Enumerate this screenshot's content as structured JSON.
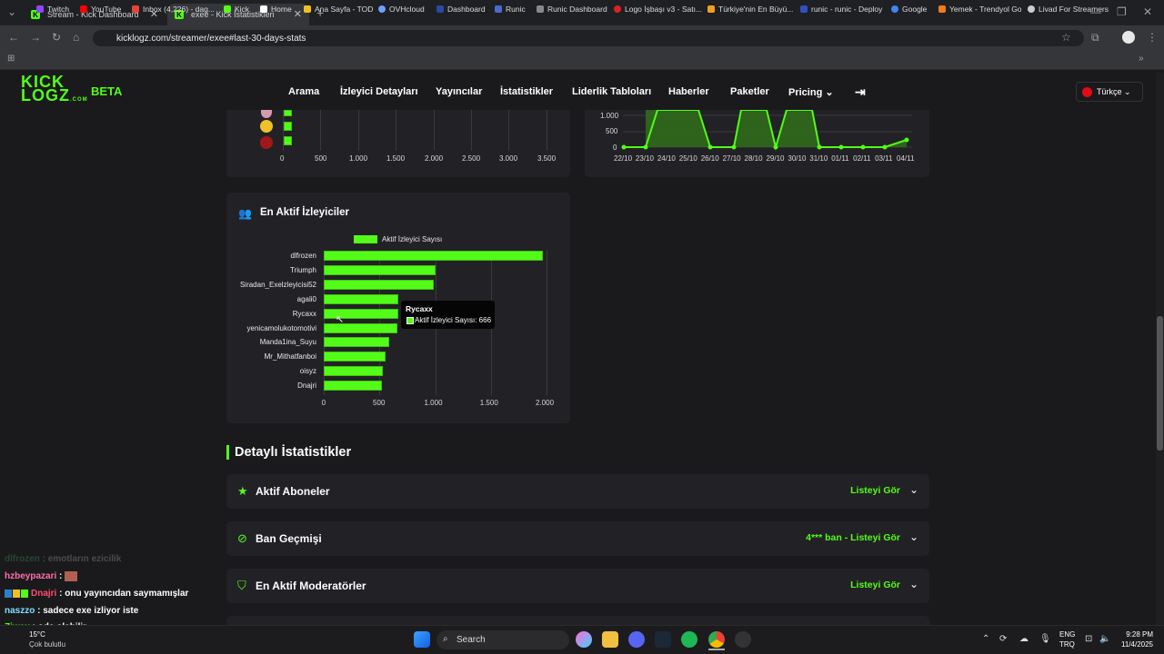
{
  "browser": {
    "tabs": [
      {
        "label": "Stream - Kick Dashboard",
        "active": false
      },
      {
        "label": "exee - Kick İstatistikleri",
        "active": true
      }
    ],
    "url": "kicklogz.com/streamer/exee#last-30-days-stats",
    "bookmarks": [
      "Twitch",
      "YouTube",
      "Inbox (4,226) - dag...",
      "Kick",
      "Home",
      "Ana Sayfa - TOD",
      "OVHcloud",
      "Dashboard",
      "Runic",
      "Runic Dashboard",
      "Logo İşbaşı v3 - Satı...",
      "Türkiye'nin En Büyü...",
      "runic - runic - Deploy",
      "Google",
      "Yemek - Trendyol Go",
      "Livad For Streamers"
    ]
  },
  "site": {
    "logo_top": "KICK",
    "logo_bottom": "LOGZ",
    "logo_suffix": ".COM",
    "beta": "BETA",
    "nav": [
      "Arama",
      "İzleyici Detayları",
      "Yayıncılar",
      "İstatistikler",
      "Liderlik Tabloları",
      "Haberler",
      "Paketler",
      "Pricing"
    ],
    "language": "Türkçe"
  },
  "top_left_chart": {
    "x_ticks": [
      "0",
      "500",
      "1.000",
      "1.500",
      "2.000",
      "2.500",
      "3.000",
      "3.500"
    ]
  },
  "top_right_chart": {
    "y_ticks": [
      "1.000",
      "500",
      "0"
    ],
    "x_ticks": [
      "22/10",
      "23/10",
      "24/10",
      "25/10",
      "26/10",
      "27/10",
      "28/10",
      "29/10",
      "30/10",
      "31/10",
      "01/11",
      "02/11",
      "03/11",
      "04/11"
    ]
  },
  "chart_data": {
    "type": "bar",
    "title": "En Aktif İzleyiciler",
    "legend": "Aktif İzleyici Sayısı",
    "categories": [
      "dlfrozen",
      "Triumph",
      "Siradan_Exelzleyicisi52",
      "agali0",
      "Rycaxx",
      "yenicamolukotomotivi",
      "Manda1ina_Suyu",
      "Mr_Mithatfanboi",
      "oisyz",
      "Dnajri"
    ],
    "values": [
      1970,
      1000,
      985,
      670,
      666,
      665,
      590,
      555,
      530,
      525
    ],
    "x_ticks": [
      "0",
      "500",
      "1.000",
      "1.500",
      "2.000"
    ],
    "xlim": [
      0,
      2000
    ],
    "tooltip": {
      "title": "Rycaxx",
      "text": "Aktif İzleyici Sayısı: 666"
    }
  },
  "details": {
    "heading": "Detaylı İstatistikler",
    "sections": [
      {
        "title": "Aktif Aboneler",
        "action": "Listeyi Gör"
      },
      {
        "title": "Ban Geçmişi",
        "action": "4*** ban - Listeyi Gör"
      },
      {
        "title": "En Aktif Moderatörler",
        "action": "Listeyi Gör"
      }
    ]
  },
  "chat": [
    {
      "user": "dlfrozen",
      "msg": "emotların ezicilik",
      "color": "#3a7a4a"
    },
    {
      "user": "hzbeypazari",
      "msg": "",
      "color": "#ff6fa8"
    },
    {
      "user": "Dnajri",
      "msg": "onu yayıncıdan saymamışlar",
      "color": "#ff4d6d"
    },
    {
      "user": "naszzo",
      "msg": "sadece exe izliyor iste",
      "color": "#7fe0ff"
    },
    {
      "user": "Ziwex",
      "msg": "oda olabilir",
      "color": "#53fc18"
    }
  ],
  "taskbar": {
    "search": "Search",
    "weather": "15°C",
    "weather_desc": "Çok bulutlu",
    "lang1": "ENG",
    "lang2": "TRQ",
    "time": "9:28 PM",
    "date": "11/4/2025"
  }
}
